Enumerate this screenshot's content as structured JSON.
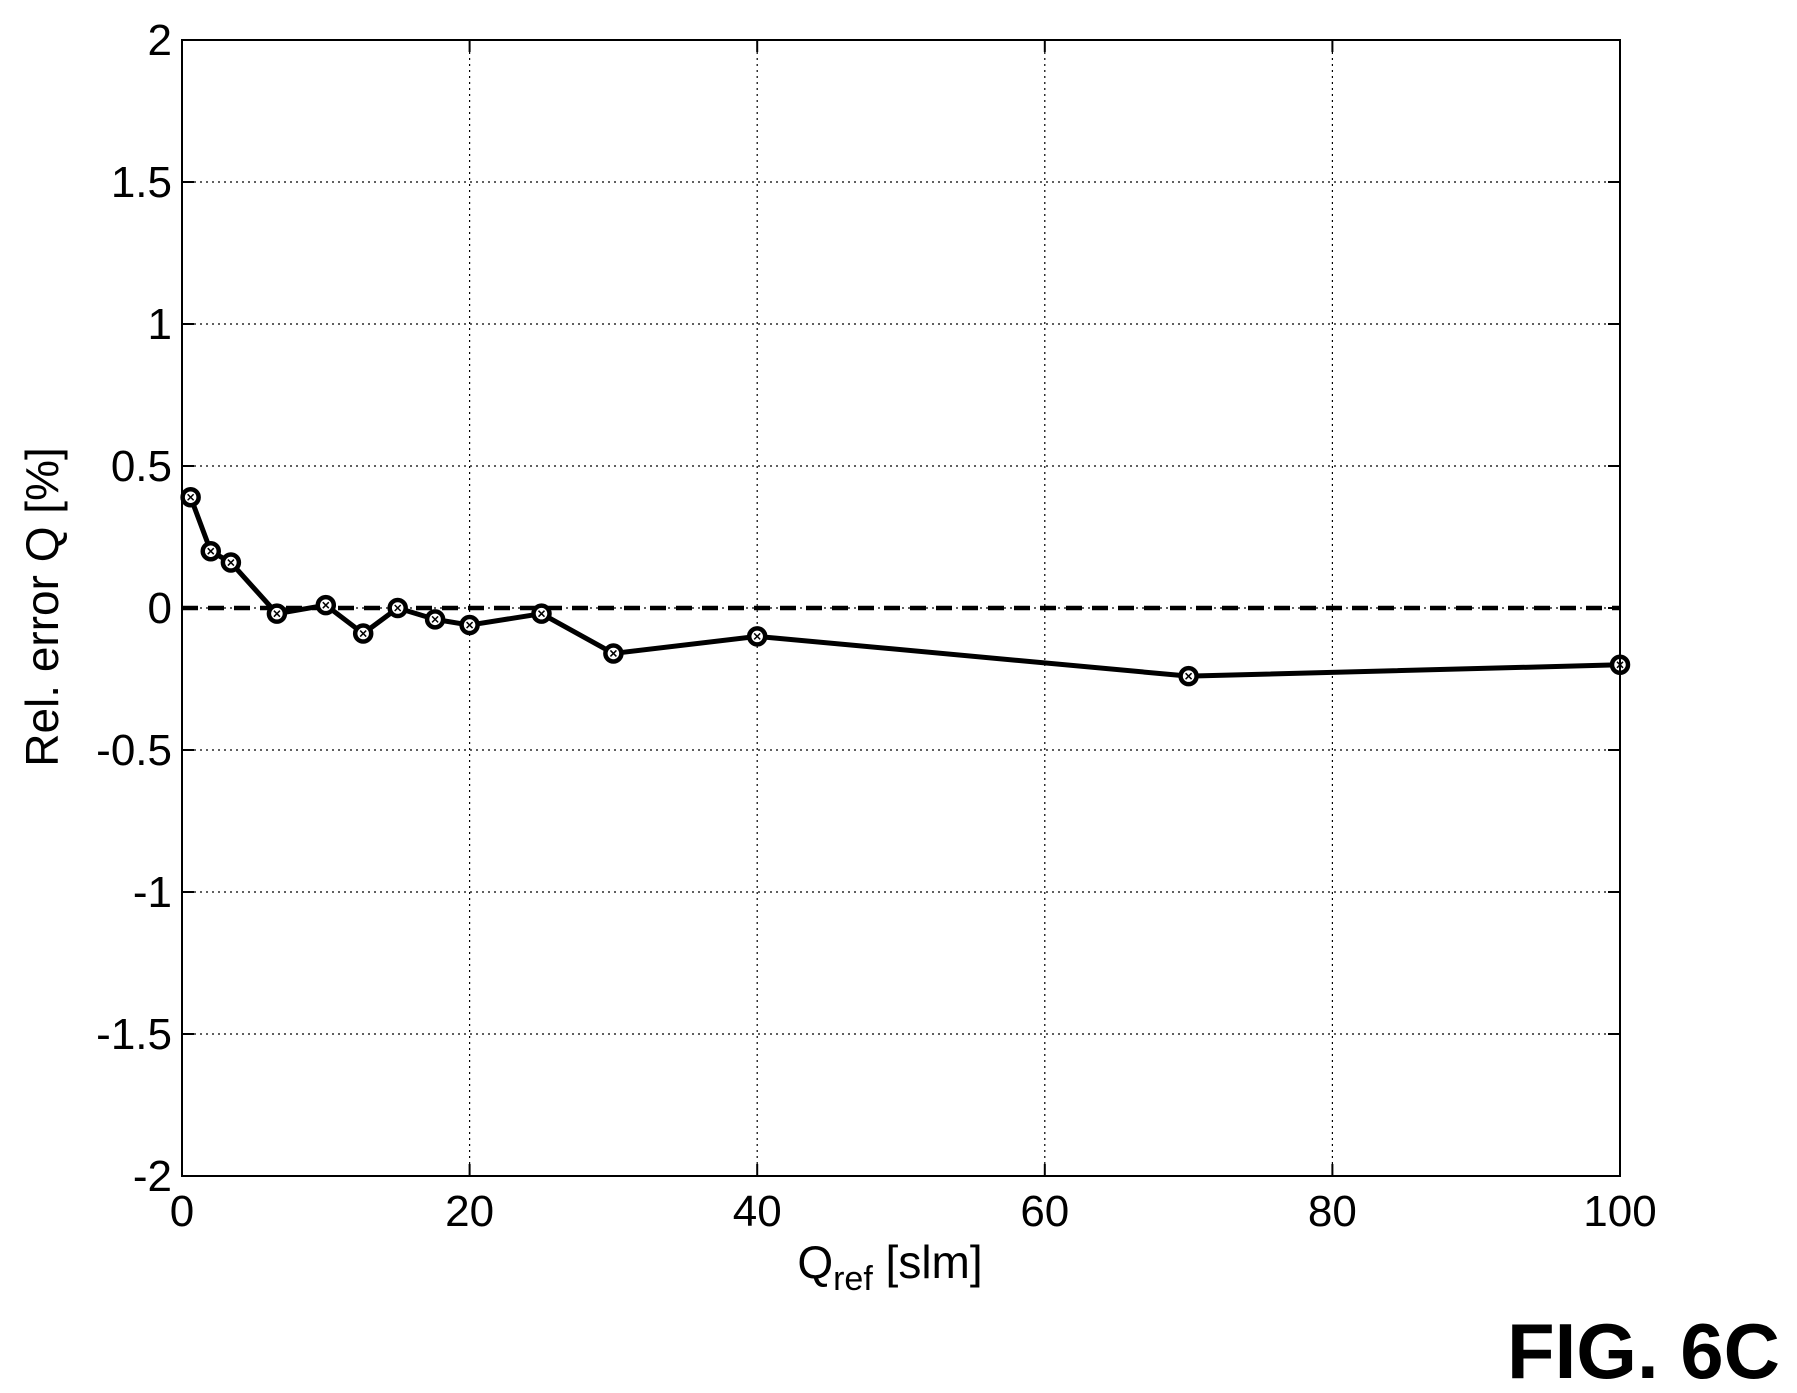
{
  "figure_label": "FIG. 6C",
  "chart_data": {
    "type": "line",
    "title": "",
    "xlabel_main": "Q",
    "xlabel_sub": "ref",
    "xlabel_unit": " [slm]",
    "ylabel": "Rel. error Q [%]",
    "xlim": [
      0,
      100
    ],
    "ylim": [
      -2,
      2
    ],
    "xticks": [
      0,
      20,
      40,
      60,
      80,
      100
    ],
    "xtick_labels": [
      "0",
      "20",
      "40",
      "60",
      "80",
      "100"
    ],
    "yticks": [
      -2,
      -1.5,
      -1,
      -0.5,
      0,
      0.5,
      1,
      1.5,
      2
    ],
    "ytick_labels": [
      "-2",
      "-1.5",
      "-1",
      "-0.5",
      "0",
      "0.5",
      "1",
      "1.5",
      "2"
    ],
    "grid": true,
    "reference_line": {
      "y": 0,
      "style": "dashed"
    },
    "series": [
      {
        "x": [
          0.6,
          2,
          3.4,
          6.6,
          10,
          12.6,
          15,
          17.6,
          20,
          25,
          30,
          40,
          70,
          100
        ],
        "y": [
          0.39,
          0.2,
          0.16,
          -0.02,
          0.01,
          -0.09,
          0.0,
          -0.04,
          -0.06,
          -0.02,
          -0.16,
          -0.1,
          -0.24,
          -0.2
        ]
      }
    ]
  }
}
